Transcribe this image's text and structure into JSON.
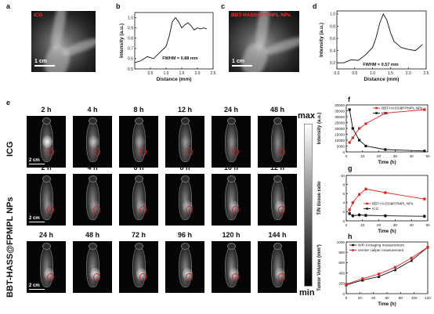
{
  "panels": {
    "a": {
      "letter": "a",
      "tag": "ICG",
      "scalebar": "1 cm"
    },
    "b": {
      "letter": "b",
      "note": "FWHM = 0.88 mm",
      "ylabel": "Intensity (a.u.)",
      "xlabel": "Distance (mm)",
      "xticks": [
        "0.5",
        "1.0",
        "1.5",
        "2.0",
        "2.5"
      ],
      "yticks": [
        "0.5",
        "0.6",
        "0.7",
        "0.8",
        "0.9",
        "1.0"
      ]
    },
    "c": {
      "letter": "c",
      "tag": "BBT-HASS@FPMPL NPs",
      "scalebar": "1 cm"
    },
    "d": {
      "letter": "d",
      "note": "FWHM = 0.57 mm",
      "ylabel": "Intensity (a.u.)",
      "xlabel": "Distance (mm)",
      "xticks": [
        "0.0",
        "0.5",
        "1.0",
        "1.5",
        "2.0",
        "2.5"
      ],
      "yticks": [
        "0.2",
        "0.4",
        "0.6",
        "0.8",
        "1.0"
      ]
    },
    "e": {
      "letter": "e",
      "row1_label": "ICG",
      "row23_label": "BBT-HASS@FPMPL NPs",
      "scalebar": "2 cm",
      "cbar_max": "max",
      "cbar_min": "min",
      "row1_times": [
        "2 h",
        "4 h",
        "8 h",
        "12 h",
        "24 h",
        "48 h"
      ],
      "row2_times": [
        "2 h",
        "4 h",
        "6 h",
        "8 h",
        "10 h",
        "12 h"
      ],
      "row3_times": [
        "24 h",
        "48 h",
        "72 h",
        "96 h",
        "120 h",
        "144 h"
      ]
    },
    "f": {
      "letter": "f",
      "ylabel": "Intensity (a.u.)",
      "xlabel": "Time (h)",
      "xticks": [
        "0",
        "10",
        "20",
        "30",
        "40",
        "50"
      ],
      "yticks": [
        "0",
        "5000",
        "10000",
        "15000",
        "20000",
        "25000",
        "30000",
        "35000",
        "40000"
      ],
      "legend": [
        "BBT-HASS@FPMPL NPs",
        "ICG"
      ]
    },
    "g": {
      "letter": "g",
      "ylabel": "T/N tissue ratio",
      "xlabel": "Time (h)",
      "xticks": [
        "0",
        "10",
        "20",
        "30",
        "40",
        "50"
      ],
      "yticks": [
        "0",
        "2",
        "4",
        "6",
        "8",
        "10"
      ],
      "legend": [
        "BBT-HASS@FPMPL NPs",
        "ICG"
      ]
    },
    "h": {
      "letter": "h",
      "ylabel": "Tumor Volume (mm³)",
      "xlabel": "Time (h)",
      "xticks": [
        "0",
        "20",
        "40",
        "60",
        "80",
        "100",
        "120"
      ],
      "yticks": [
        "0",
        "200",
        "400",
        "600",
        "800",
        "1000"
      ],
      "legend": [
        "NIR-II imaging measurement",
        "vernier caliper measurement"
      ]
    }
  },
  "chart_data": [
    {
      "panel": "b",
      "type": "line",
      "x": [
        0.0,
        0.2,
        0.4,
        0.6,
        0.8,
        1.0,
        1.1,
        1.2,
        1.3,
        1.4,
        1.5,
        1.6,
        1.7,
        1.8,
        1.9,
        2.0,
        2.1,
        2.2,
        2.3
      ],
      "y": [
        0.56,
        0.58,
        0.62,
        0.6,
        0.66,
        0.72,
        0.82,
        0.96,
        1.0,
        0.96,
        0.9,
        0.93,
        0.95,
        0.92,
        0.88,
        0.9,
        0.89,
        0.9,
        0.89
      ],
      "xlim": [
        0,
        2.5
      ],
      "ylim": [
        0.5,
        1.05
      ]
    },
    {
      "panel": "d",
      "type": "line",
      "x": [
        0.0,
        0.2,
        0.4,
        0.6,
        0.8,
        1.0,
        1.1,
        1.2,
        1.3,
        1.4,
        1.5,
        1.6,
        1.8,
        2.0,
        2.2,
        2.4
      ],
      "y": [
        0.2,
        0.2,
        0.25,
        0.24,
        0.33,
        0.45,
        0.62,
        0.85,
        1.0,
        0.9,
        0.7,
        0.55,
        0.45,
        0.42,
        0.4,
        0.5
      ],
      "xlim": [
        0,
        2.5
      ],
      "ylim": [
        0.1,
        1.05
      ]
    },
    {
      "panel": "f",
      "type": "line",
      "x": [
        2,
        4,
        8,
        12,
        24,
        48
      ],
      "xlim": [
        0,
        50
      ],
      "ylim": [
        0,
        40000
      ],
      "series": [
        {
          "name": "BBT-HASS@FPMPL NPs",
          "color": "#e8231f",
          "values": [
            8000,
            12000,
            20000,
            24000,
            33000,
            36000
          ]
        },
        {
          "name": "ICG",
          "color": "#111111",
          "values": [
            36000,
            20000,
            10000,
            5000,
            2000,
            800
          ]
        }
      ]
    },
    {
      "panel": "g",
      "type": "line",
      "x": [
        2,
        4,
        8,
        12,
        24,
        48
      ],
      "xlim": [
        0,
        50
      ],
      "ylim": [
        0,
        10
      ],
      "series": [
        {
          "name": "BBT-HASS@FPMPL NPs",
          "color": "#e8231f",
          "values": [
            2.4,
            4.0,
            5.8,
            7.0,
            6.2,
            4.8
          ]
        },
        {
          "name": "ICG",
          "color": "#111111",
          "values": [
            1.6,
            1.1,
            1.3,
            1.2,
            1.1,
            1.0
          ]
        }
      ]
    },
    {
      "panel": "h",
      "type": "line",
      "x": [
        0,
        24,
        48,
        72,
        96,
        120
      ],
      "xlim": [
        0,
        120
      ],
      "ylim": [
        0,
        1000
      ],
      "series": [
        {
          "name": "NIR-II imaging measurement",
          "color": "#111111",
          "values": [
            170,
            260,
            330,
            460,
            640,
            900
          ]
        },
        {
          "name": "vernier caliper measurement",
          "color": "#e8231f",
          "values": [
            180,
            290,
            380,
            510,
            690,
            900
          ]
        }
      ]
    }
  ]
}
